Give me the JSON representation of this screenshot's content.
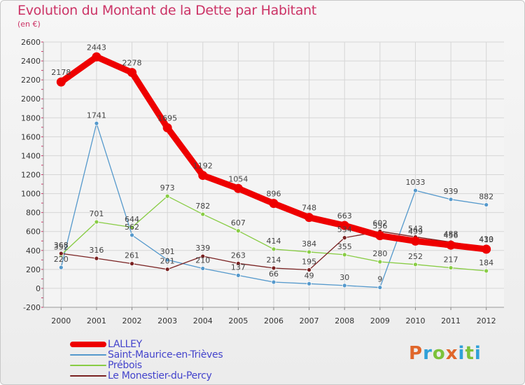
{
  "page": {
    "title": "Evolution du Montant de la Dette par Habitant",
    "subtitle": "(en €)",
    "logo_text": "Proxiti",
    "logo_colors": [
      "#e0662a",
      "#2fa0d8",
      "#7cc23a",
      "#e0662a",
      "#2fa0d8",
      "#7cc23a",
      "#2fa0d8"
    ]
  },
  "chart_data": {
    "type": "line",
    "title": "Evolution du Montant de la Dette par Habitant",
    "subtitle": "(en €)",
    "xlabel": "",
    "ylabel": "",
    "x": [
      "2000",
      "2001",
      "2002",
      "2003",
      "2004",
      "2005",
      "2006",
      "2007",
      "2008",
      "2009",
      "2010",
      "2011",
      "2012"
    ],
    "ylim": [
      -200,
      2600
    ],
    "yticks": [
      -200,
      0,
      200,
      400,
      600,
      800,
      1000,
      1200,
      1400,
      1600,
      1800,
      2000,
      2200,
      2400,
      2600
    ],
    "grid": true,
    "legend_position": "bottom-left",
    "series": [
      {
        "name": "LALLEY",
        "color": "#ee0000",
        "values": [
          2178,
          2443,
          2278,
          1695,
          1192,
          1054,
          896,
          748,
          663,
          556,
          499,
          456,
          413
        ]
      },
      {
        "name": "Saint-Maurice-en-Trièves",
        "color": "#5599cc",
        "values": [
          220,
          1741,
          562,
          301,
          210,
          137,
          66,
          49,
          30,
          9,
          1033,
          939,
          882
        ]
      },
      {
        "name": "Prébois",
        "color": "#88cc44",
        "values": [
          352,
          701,
          644,
          973,
          782,
          607,
          414,
          384,
          355,
          280,
          252,
          217,
          184
        ]
      },
      {
        "name": "Le Monestier-du-Percy",
        "color": "#7a2222",
        "values": [
          368,
          316,
          261,
          201,
          339,
          263,
          214,
          195,
          534,
          602,
          543,
          488,
          430
        ]
      }
    ]
  }
}
